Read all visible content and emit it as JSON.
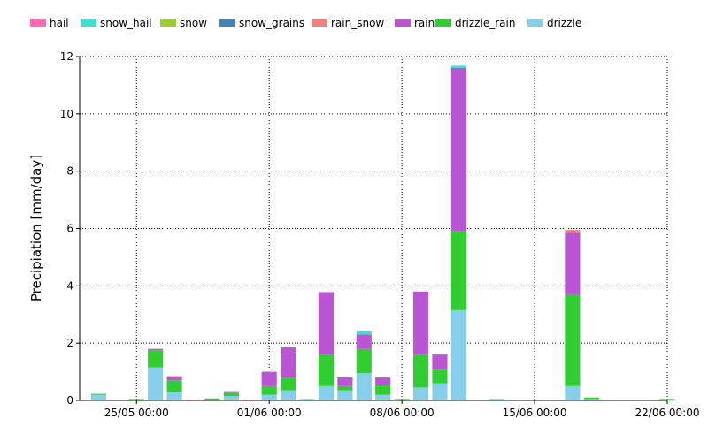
{
  "chart_data": {
    "type": "bar",
    "stacked": true,
    "title": "",
    "xlabel": "",
    "ylabel": "Precipiation [mm/day]",
    "ylim": [
      0,
      12
    ],
    "yticks": [
      0,
      2,
      4,
      6,
      8,
      10,
      12
    ],
    "xlim": [
      "2024-05-22",
      "2024-06-22"
    ],
    "xticks": [
      "2024-05-25",
      "2024-06-01",
      "2024-06-08",
      "2024-06-15",
      "2024-06-22"
    ],
    "xtick_labels": [
      "25/05 00:00",
      "01/06 00:00",
      "08/06 00:00",
      "15/06 00:00",
      "22/06 00:00"
    ],
    "grid": "dotted-both",
    "legend_position": "top-left",
    "dates": [
      "2024-05-23",
      "2024-05-24",
      "2024-05-25",
      "2024-05-26",
      "2024-05-27",
      "2024-05-28",
      "2024-05-29",
      "2024-05-30",
      "2024-05-31",
      "2024-06-01",
      "2024-06-02",
      "2024-06-03",
      "2024-06-04",
      "2024-06-05",
      "2024-06-06",
      "2024-06-07",
      "2024-06-08",
      "2024-06-09",
      "2024-06-10",
      "2024-06-11",
      "2024-06-12",
      "2024-06-13",
      "2024-06-14",
      "2024-06-15",
      "2024-06-16",
      "2024-06-17",
      "2024-06-18",
      "2024-06-19",
      "2024-06-20",
      "2024-06-21",
      "2024-06-22"
    ],
    "series": [
      {
        "name": "hail",
        "color": "#ff69b4",
        "values": [
          0,
          0,
          0,
          0,
          0,
          0,
          0,
          0,
          0,
          0,
          0,
          0,
          0,
          0,
          0,
          0,
          0,
          0,
          0,
          0,
          0,
          0,
          0,
          0,
          0,
          0,
          0,
          0,
          0,
          0,
          0
        ]
      },
      {
        "name": "snow_hail",
        "color": "#40e0d0",
        "values": [
          0,
          0,
          0,
          0,
          0,
          0,
          0,
          0,
          0,
          0,
          0,
          0.05,
          0,
          0,
          0.12,
          0,
          0,
          0,
          0,
          0.08,
          0,
          0.05,
          0,
          0,
          0,
          0,
          0,
          0,
          0,
          0,
          0
        ]
      },
      {
        "name": "snow",
        "color": "#9acd32",
        "values": [
          0,
          0,
          0,
          0,
          0,
          0,
          0,
          0,
          0,
          0,
          0,
          0,
          0,
          0,
          0,
          0,
          0,
          0,
          0,
          0,
          0,
          0,
          0,
          0,
          0,
          0,
          0,
          0,
          0,
          0,
          0
        ]
      },
      {
        "name": "snow_grains",
        "color": "#4682b4",
        "values": [
          0,
          0,
          0,
          0,
          0,
          0,
          0,
          0,
          0,
          0,
          0,
          0,
          0,
          0,
          0,
          0,
          0,
          0,
          0,
          0,
          0,
          0,
          0,
          0,
          0,
          0,
          0,
          0,
          0,
          0,
          0
        ]
      },
      {
        "name": "rain_snow",
        "color": "#f08080",
        "values": [
          0,
          0,
          0,
          0,
          0.03,
          0.03,
          0,
          0,
          0.03,
          0,
          0,
          0,
          0,
          0,
          0,
          0,
          0,
          0,
          0,
          0,
          0,
          0,
          0,
          0,
          0,
          0.1,
          0,
          0,
          0,
          0,
          0
        ]
      },
      {
        "name": "rain",
        "color": "#ba55d3",
        "values": [
          0,
          0,
          0,
          0.05,
          0.12,
          0,
          0,
          0.05,
          0,
          0.5,
          1.05,
          0,
          2.2,
          0.3,
          0.5,
          0.25,
          0,
          2.2,
          0.5,
          5.7,
          0,
          0,
          0,
          0,
          0,
          2.15,
          0,
          0,
          0,
          0,
          0
        ]
      },
      {
        "name": "drizzle_rain",
        "color": "#32cd32",
        "values": [
          0.03,
          0,
          0.05,
          0.6,
          0.4,
          0,
          0.05,
          0.12,
          0,
          0.3,
          0.45,
          0,
          1.08,
          0.15,
          0.85,
          0.35,
          0.05,
          1.15,
          0.5,
          2.75,
          0,
          0,
          0,
          0,
          0,
          3.2,
          0.05,
          0,
          0,
          0,
          0.05
        ]
      },
      {
        "name": "drizzle",
        "color": "#87ceeb",
        "values": [
          0.2,
          0,
          0,
          1.15,
          0.3,
          0,
          0.02,
          0.15,
          0,
          0.2,
          0.35,
          0,
          0.5,
          0.35,
          0.95,
          0.2,
          0,
          0.45,
          0.6,
          3.15,
          0,
          0,
          0,
          0,
          0,
          0.5,
          0.05,
          0,
          0,
          0,
          0
        ]
      }
    ]
  }
}
